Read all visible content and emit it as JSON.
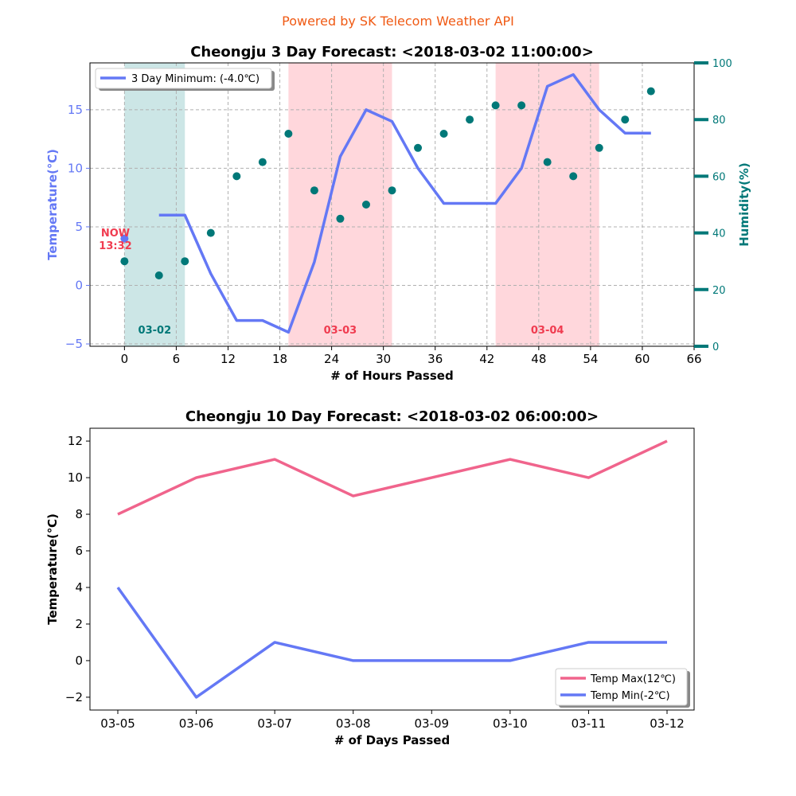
{
  "banner": "Powered by SK Telecom Weather API",
  "colors": {
    "banner": "#f05a14",
    "temp_line": "#6478f5",
    "temp_max": "#f0648c",
    "humidity": "#007878",
    "now_label": "#f03c50",
    "band_teal": "#cce6e6",
    "band_pink": "#ffd7dc"
  },
  "chart_data": [
    {
      "type": "line",
      "title": "Cheongju 3 Day Forecast: <2018-03-02 11:00:00>",
      "xlabel": "# of Hours Passed",
      "ylabel": "Temperature(℃)",
      "y2label": "Humidity(%)",
      "xlim": [
        -4,
        66
      ],
      "ylim": [
        -5.2,
        19
      ],
      "y2lim": [
        0,
        100
      ],
      "x_ticks": [
        0,
        6,
        12,
        18,
        24,
        30,
        36,
        42,
        48,
        54,
        60,
        66
      ],
      "y_ticks": [
        -5,
        0,
        5,
        10,
        15
      ],
      "y2_ticks": [
        0,
        20,
        40,
        60,
        80,
        100
      ],
      "grid": true,
      "legend": {
        "position": "top-left",
        "entries": [
          "3 Day Minimum: (-4.0℃)"
        ]
      },
      "day_bands": [
        {
          "label": "03-02",
          "x_start": 0,
          "x_end": 7,
          "color": "teal"
        },
        {
          "label": "03-03",
          "x_start": 19,
          "x_end": 31,
          "color": "pink"
        },
        {
          "label": "03-04",
          "x_start": 43,
          "x_end": 55,
          "color": "pink"
        }
      ],
      "now_marker": {
        "x": 0,
        "y": 4,
        "label_line1": "NOW",
        "label_line2": "13:32"
      },
      "series": [
        {
          "name": "3 Day Minimum: (-4.0℃)",
          "axis": "temperature",
          "x": [
            4,
            7,
            10,
            13,
            16,
            19,
            22,
            25,
            28,
            31,
            34,
            37,
            40,
            43,
            46,
            49,
            52,
            55,
            58,
            61
          ],
          "values": [
            6,
            6,
            1,
            -3,
            -3,
            -4,
            2,
            11,
            15,
            14,
            10,
            7,
            7,
            7,
            10,
            17,
            18,
            15,
            13,
            13
          ]
        },
        {
          "axis": "humidity",
          "style": "scatter",
          "x": [
            0,
            4,
            7,
            10,
            13,
            16,
            19,
            22,
            25,
            28,
            31,
            34,
            37,
            40,
            43,
            46,
            49,
            52,
            55,
            58,
            61
          ],
          "values": [
            30,
            25,
            30,
            40,
            60,
            65,
            75,
            55,
            45,
            50,
            55,
            70,
            75,
            80,
            85,
            85,
            65,
            60,
            70,
            80,
            90
          ]
        }
      ]
    },
    {
      "type": "line",
      "title": "Cheongju 10 Day Forecast: <2018-03-02 06:00:00>",
      "xlabel": "# of Days Passed",
      "ylabel": "Temperature(℃)",
      "categories": [
        "03-05",
        "03-06",
        "03-07",
        "03-08",
        "03-09",
        "03-10",
        "03-11",
        "03-12"
      ],
      "ylim": [
        -2.7,
        12.7
      ],
      "y_ticks": [
        -2,
        0,
        2,
        4,
        6,
        8,
        10,
        12
      ],
      "grid": false,
      "legend": {
        "position": "bottom-right"
      },
      "series": [
        {
          "name": "Temp Max(12℃)",
          "values": [
            8,
            10,
            11,
            9,
            10,
            11,
            10,
            12
          ]
        },
        {
          "name": "Temp Min(-2℃)",
          "values": [
            4,
            -2,
            1,
            0,
            0,
            0,
            1,
            1
          ]
        }
      ]
    }
  ]
}
